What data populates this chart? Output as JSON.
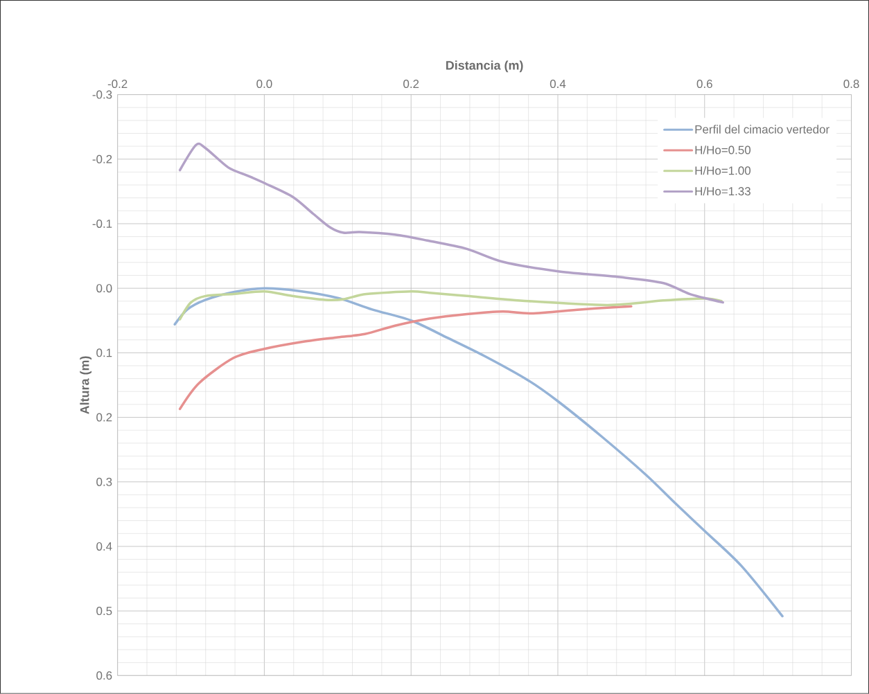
{
  "chart_data": {
    "type": "line",
    "xlabel": "Distancia (m)",
    "ylabel": "Altura (m)",
    "xlim": [
      -0.2,
      0.8
    ],
    "xticks": [
      -0.2,
      {
        "value": 0,
        "label": "0.0"
      },
      0.2,
      0.4,
      0.6,
      0.8
    ],
    "ylim": [
      0.6,
      -0.3
    ],
    "yticks": [
      -0.3,
      -0.2,
      -0.1,
      {
        "value": 0,
        "label": "0.0"
      },
      0.1,
      0.2,
      0.3,
      0.4,
      0.5,
      0.6
    ],
    "grid": true,
    "legend": "top right",
    "series": [
      {
        "name": "Perfil del cimacio vertedor",
        "color": "#95b3d7",
        "x": [
          -0.122,
          -0.105,
          -0.08,
          -0.042,
          0,
          0.046,
          0.1,
          0.147,
          0.2,
          0.25,
          0.3,
          0.36,
          0.4,
          0.46,
          0.52,
          0.56,
          0.6,
          0.65,
          0.706
        ],
        "values": [
          0.056,
          0.033,
          0.018,
          0.006,
          0,
          0.004,
          0.015,
          0.033,
          0.05,
          0.077,
          0.105,
          0.143,
          0.175,
          0.23,
          0.289,
          0.333,
          0.376,
          0.43,
          0.508
        ]
      },
      {
        "name": "H/Ho=0.50",
        "color": "#e6908f",
        "x": [
          -0.115,
          -0.089,
          -0.042,
          0,
          0.052,
          0.1,
          0.137,
          0.178,
          0.225,
          0.276,
          0.325,
          0.364,
          0.43,
          0.483,
          0.5
        ],
        "values": [
          0.187,
          0.147,
          0.108,
          0.094,
          0.083,
          0.076,
          0.071,
          0.058,
          0.047,
          0.04,
          0.036,
          0.039,
          0.033,
          0.029,
          0.028
        ]
      },
      {
        "name": "H/Ho=1.00",
        "color": "#c3d69b",
        "x": [
          -0.115,
          -0.1,
          -0.08,
          -0.042,
          0,
          0.038,
          0.083,
          0.108,
          0.139,
          0.2,
          0.225,
          0.276,
          0.36,
          0.468,
          0.544,
          0.6,
          0.623
        ],
        "values": [
          0.048,
          0.022,
          0.012,
          0.009,
          0.005,
          0.012,
          0.018,
          0.017,
          0.009,
          0.005,
          0.007,
          0.012,
          0.02,
          0.026,
          0.019,
          0.016,
          0.02
        ]
      },
      {
        "name": "H/Ho=1.33",
        "color": "#b3a2c7",
        "x": [
          -0.115,
          -0.093,
          -0.08,
          -0.049,
          -0.024,
          0,
          0.038,
          0.067,
          0.09,
          0.108,
          0.13,
          0.178,
          0.222,
          0.276,
          0.325,
          0.402,
          0.487,
          0.544,
          0.58,
          0.625
        ],
        "values": [
          -0.183,
          -0.222,
          -0.217,
          -0.187,
          -0.175,
          -0.163,
          -0.142,
          -0.115,
          -0.094,
          -0.086,
          -0.087,
          -0.083,
          -0.074,
          -0.061,
          -0.041,
          -0.026,
          -0.017,
          -0.008,
          0.009,
          0.022
        ]
      }
    ]
  }
}
